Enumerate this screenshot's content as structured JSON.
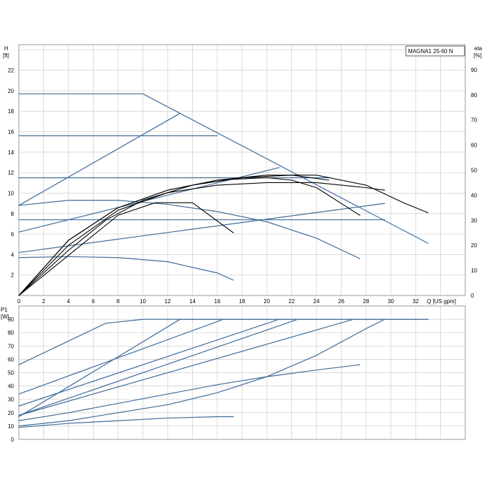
{
  "chart_data": [
    {
      "type": "line",
      "title": "MAGNA1 25-60 N",
      "ylabel": "H",
      "yunit": "[ft]",
      "y2label": "eta",
      "y2unit": "[%]",
      "xlabel": "Q [US gpm]",
      "xlim": [
        0,
        36
      ],
      "ylim": [
        0,
        24.5
      ],
      "y2lim": [
        0,
        100
      ],
      "xticks": [
        "0",
        "2",
        "4",
        "6",
        "8",
        "10",
        "12",
        "14",
        "16",
        "18",
        "20",
        "22",
        "24",
        "26",
        "28",
        "30",
        "32"
      ],
      "yticks": [
        "2",
        "4",
        "6",
        "8",
        "10",
        "12",
        "14",
        "16",
        "18",
        "20",
        "22"
      ],
      "y2ticks": [
        "0",
        "10",
        "20",
        "30",
        "40",
        "50",
        "60",
        "70",
        "80",
        "90"
      ],
      "grid": true,
      "colors": {
        "head": "#3d6a99",
        "eta": "#000000",
        "grid": "#cccccc"
      },
      "series": [
        {
          "kind": "head",
          "x": [
            0,
            10,
            33
          ],
          "y": [
            19.7,
            19.7,
            5.1
          ]
        },
        {
          "kind": "head",
          "x": [
            0,
            16
          ],
          "y": [
            15.6,
            15.6
          ]
        },
        {
          "kind": "head",
          "x": [
            0,
            25
          ],
          "y": [
            11.5,
            11.5
          ]
        },
        {
          "kind": "head",
          "x": [
            0,
            29.5
          ],
          "y": [
            7.4,
            7.4
          ]
        },
        {
          "kind": "head",
          "x": [
            0,
            13
          ],
          "y": [
            8.8,
            17.8
          ]
        },
        {
          "kind": "head",
          "x": [
            0,
            21
          ],
          "y": [
            6.2,
            12.5
          ]
        },
        {
          "kind": "head",
          "x": [
            0,
            29.5
          ],
          "y": [
            4.2,
            9.0
          ]
        },
        {
          "kind": "head",
          "x": [
            0,
            4,
            8,
            12,
            16,
            20,
            24,
            27.5
          ],
          "y": [
            8.8,
            9.3,
            9.3,
            8.9,
            8.2,
            7.2,
            5.6,
            3.6
          ]
        },
        {
          "kind": "head",
          "x": [
            0,
            4,
            8,
            12,
            16,
            17.3
          ],
          "y": [
            3.7,
            3.8,
            3.7,
            3.3,
            2.2,
            1.5
          ]
        },
        {
          "kind": "eta",
          "x": [
            0,
            4,
            8,
            12,
            16,
            20,
            24,
            28,
            31,
            33
          ],
          "y": [
            0,
            22,
            35,
            42,
            46,
            48,
            48,
            44,
            37,
            33
          ]
        },
        {
          "kind": "eta",
          "x": [
            0,
            4,
            8,
            12,
            16,
            20,
            22,
            24,
            27.5
          ],
          "y": [
            0,
            22,
            35,
            42,
            46,
            47,
            46,
            43,
            32
          ]
        },
        {
          "kind": "eta",
          "x": [
            0,
            4,
            8,
            12,
            16,
            20,
            24,
            28,
            29.5
          ],
          "y": [
            0,
            20,
            34,
            41,
            44,
            45,
            45,
            43,
            42
          ]
        },
        {
          "kind": "eta",
          "x": [
            0,
            2,
            5,
            8,
            11,
            14,
            17.3
          ],
          "y": [
            0,
            8,
            20,
            32,
            37,
            37,
            25
          ]
        },
        {
          "kind": "eta",
          "x": [
            0,
            4,
            7,
            10,
            14,
            18,
            22,
            25
          ],
          "y": [
            0,
            18,
            30,
            38,
            44,
            47,
            48,
            46
          ]
        }
      ]
    },
    {
      "type": "line",
      "ylabel": "P1",
      "yunit": "[W]",
      "xlim": [
        0,
        36
      ],
      "ylim": [
        0,
        100
      ],
      "yticks": [
        "0",
        "10",
        "20",
        "30",
        "40",
        "50",
        "60",
        "70",
        "80",
        "90"
      ],
      "grid": true,
      "colors": {
        "power": "#3d6a99",
        "grid": "#cccccc"
      },
      "series": [
        {
          "x": [
            0,
            7,
            10,
            33
          ],
          "y": [
            56,
            87,
            90,
            90
          ]
        },
        {
          "x": [
            0,
            13,
            33
          ],
          "y": [
            17,
            90,
            90
          ]
        },
        {
          "x": [
            0,
            16.5
          ],
          "y": [
            34,
            90
          ]
        },
        {
          "x": [
            0,
            21
          ],
          "y": [
            25,
            90
          ]
        },
        {
          "x": [
            0,
            22.5
          ],
          "y": [
            18,
            90
          ]
        },
        {
          "x": [
            0,
            27
          ],
          "y": [
            18,
            90
          ]
        },
        {
          "x": [
            0,
            4,
            8,
            12,
            16,
            20,
            24,
            27.5
          ],
          "y": [
            14,
            20,
            27,
            34,
            41,
            47,
            52,
            56
          ]
        },
        {
          "x": [
            0,
            4,
            8,
            12,
            16,
            20,
            24,
            28,
            29.5
          ],
          "y": [
            10,
            14,
            20,
            26,
            35,
            47,
            63,
            83,
            90
          ]
        },
        {
          "x": [
            0,
            4,
            8,
            12,
            16,
            17.3
          ],
          "y": [
            9,
            12,
            14,
            16,
            17,
            17
          ]
        }
      ]
    }
  ]
}
